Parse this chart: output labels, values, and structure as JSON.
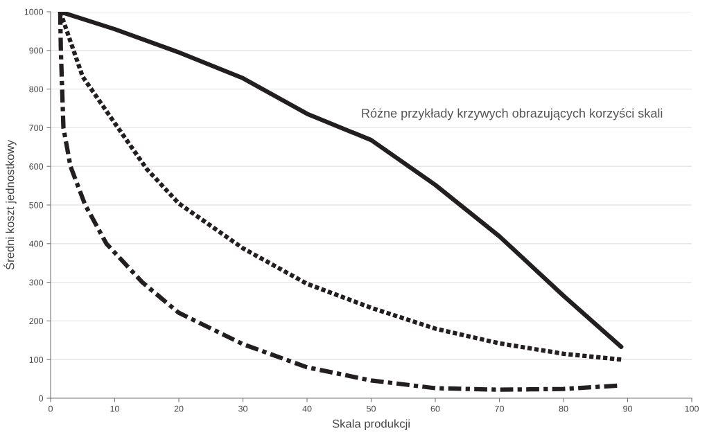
{
  "chart_data": {
    "type": "line",
    "xlabel": "Skala produkcji",
    "ylabel": "Średni koszt jednostkowy",
    "annotations": [
      "Różne przykłady krzywych obrazujących korzyści skali"
    ],
    "xlim": [
      0,
      100
    ],
    "xticks": [
      0,
      10,
      20,
      30,
      40,
      50,
      60,
      70,
      80,
      90,
      100
    ],
    "ylim": [
      0,
      1000
    ],
    "yticks": [
      0,
      100,
      200,
      300,
      400,
      500,
      600,
      700,
      800,
      900,
      1000
    ],
    "grid": "y",
    "legend": false,
    "marker": "none",
    "series": [
      {
        "color": "#231f20",
        "line_style": "solid",
        "x": [
          1.5,
          10,
          20,
          30,
          40,
          50,
          60,
          70,
          80,
          89
        ],
        "values": [
          1000,
          955,
          895,
          828,
          736,
          668,
          552,
          419,
          265,
          133
        ]
      },
      {
        "color": "#231f20",
        "line_style": "dotted",
        "x": [
          1.5,
          5,
          10,
          15,
          20,
          30,
          40,
          50,
          60,
          70,
          80,
          89
        ],
        "values": [
          1000,
          832,
          712,
          593,
          504,
          388,
          296,
          234,
          180,
          142,
          115,
          100
        ]
      },
      {
        "color": "#231f20",
        "line_style": "dashdot",
        "x": [
          1.5,
          1.6,
          1.8,
          2,
          3.1,
          5.4,
          8.7,
          14.3,
          20,
          30,
          40,
          50,
          60,
          70,
          80,
          89
        ],
        "values": [
          1000,
          900,
          800,
          700,
          600,
          500,
          400,
          300,
          221,
          140,
          80,
          46,
          26,
          22,
          24,
          33
        ]
      }
    ]
  }
}
